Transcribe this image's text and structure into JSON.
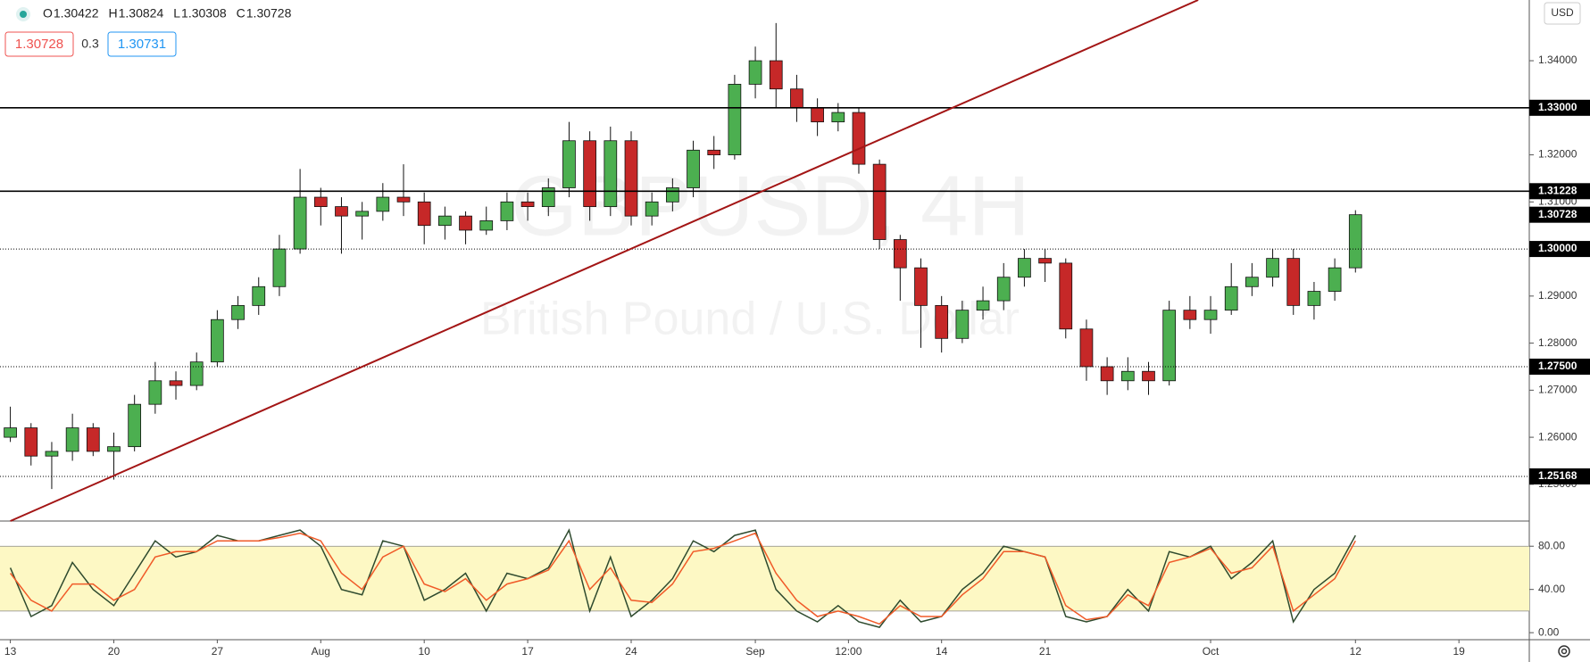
{
  "header": {
    "ohlc": [
      {
        "label": "O",
        "value": "1.30422"
      },
      {
        "label": "H",
        "value": "1.30824"
      },
      {
        "label": "L",
        "value": "1.30308"
      },
      {
        "label": "C",
        "value": "1.30728"
      }
    ],
    "sell": "1.30728",
    "spread": "0.3",
    "buy": "1.30731",
    "currency": "USD",
    "watermark": "GBPUSD, 4H",
    "watermark_sub": "British Pound / U.S. Dollar"
  },
  "chart_data": [
    {
      "type": "candlestick",
      "up_color": "#4caf50",
      "down_color": "#c62828",
      "x": [
        0,
        1,
        2,
        3,
        4,
        5,
        6,
        7,
        8,
        9,
        10,
        11,
        12,
        13,
        14,
        15,
        16,
        17,
        18,
        19,
        20,
        21,
        22,
        23,
        24,
        25,
        26,
        27,
        28,
        29,
        30,
        31,
        32,
        33,
        34,
        35,
        36,
        37,
        38,
        39,
        40,
        41,
        42,
        43,
        44,
        45,
        46,
        47,
        48,
        49,
        50,
        51,
        52,
        53,
        54,
        55,
        56,
        57,
        58,
        59,
        60,
        61,
        62,
        63,
        64,
        65
      ],
      "open": [
        1.26,
        1.262,
        1.256,
        1.257,
        1.262,
        1.257,
        1.258,
        1.267,
        1.272,
        1.271,
        1.276,
        1.285,
        1.288,
        1.292,
        1.3,
        1.311,
        1.309,
        1.307,
        1.308,
        1.311,
        1.31,
        1.305,
        1.307,
        1.304,
        1.306,
        1.31,
        1.309,
        1.313,
        1.323,
        1.309,
        1.323,
        1.307,
        1.31,
        1.313,
        1.321,
        1.32,
        1.335,
        1.34,
        1.334,
        1.33,
        1.327,
        1.329,
        1.318,
        1.302,
        1.296,
        1.288,
        1.281,
        1.287,
        1.289,
        1.294,
        1.298,
        1.297,
        1.283,
        1.275,
        1.272,
        1.274,
        1.272,
        1.287,
        1.285,
        1.287,
        1.292,
        1.294,
        1.298,
        1.288,
        1.291,
        1.296
      ],
      "high": [
        1.2665,
        1.263,
        1.259,
        1.265,
        1.263,
        1.261,
        1.269,
        1.276,
        1.274,
        1.278,
        1.287,
        1.29,
        1.294,
        1.303,
        1.317,
        1.313,
        1.311,
        1.31,
        1.314,
        1.318,
        1.312,
        1.309,
        1.308,
        1.309,
        1.312,
        1.312,
        1.315,
        1.327,
        1.325,
        1.326,
        1.325,
        1.312,
        1.315,
        1.323,
        1.324,
        1.337,
        1.343,
        1.348,
        1.337,
        1.332,
        1.331,
        1.33,
        1.319,
        1.303,
        1.298,
        1.29,
        1.289,
        1.292,
        1.297,
        1.3,
        1.3,
        1.298,
        1.285,
        1.277,
        1.277,
        1.276,
        1.289,
        1.29,
        1.29,
        1.297,
        1.297,
        1.3,
        1.3,
        1.293,
        1.298,
        1.30824
      ],
      "low": [
        1.259,
        1.254,
        1.249,
        1.255,
        1.256,
        1.251,
        1.257,
        1.265,
        1.268,
        1.27,
        1.275,
        1.283,
        1.286,
        1.29,
        1.299,
        1.305,
        1.299,
        1.302,
        1.306,
        1.307,
        1.301,
        1.302,
        1.301,
        1.303,
        1.304,
        1.306,
        1.307,
        1.311,
        1.306,
        1.307,
        1.305,
        1.305,
        1.308,
        1.311,
        1.317,
        1.319,
        1.332,
        1.33,
        1.327,
        1.324,
        1.325,
        1.316,
        1.3,
        1.289,
        1.279,
        1.278,
        1.28,
        1.285,
        1.287,
        1.292,
        1.293,
        1.281,
        1.272,
        1.269,
        1.27,
        1.269,
        1.271,
        1.283,
        1.282,
        1.286,
        1.29,
        1.292,
        1.286,
        1.285,
        1.289,
        1.295
      ],
      "close": [
        1.262,
        1.256,
        1.257,
        1.262,
        1.257,
        1.258,
        1.267,
        1.272,
        1.271,
        1.276,
        1.285,
        1.288,
        1.292,
        1.3,
        1.311,
        1.309,
        1.307,
        1.308,
        1.311,
        1.31,
        1.305,
        1.307,
        1.304,
        1.306,
        1.31,
        1.309,
        1.313,
        1.323,
        1.309,
        1.323,
        1.307,
        1.31,
        1.313,
        1.321,
        1.32,
        1.335,
        1.34,
        1.334,
        1.33,
        1.327,
        1.329,
        1.318,
        1.302,
        1.296,
        1.288,
        1.281,
        1.287,
        1.289,
        1.294,
        1.298,
        1.297,
        1.283,
        1.275,
        1.272,
        1.274,
        1.272,
        1.287,
        1.285,
        1.287,
        1.292,
        1.294,
        1.298,
        1.288,
        1.291,
        1.296,
        1.30728
      ],
      "xlim": [
        -0.5,
        73.4
      ],
      "ylim": [
        1.2422,
        1.3529
      ],
      "yticks": [
        {
          "value": 1.25,
          "label": "1.25000"
        },
        {
          "value": 1.26,
          "label": "1.26000"
        },
        {
          "value": 1.27,
          "label": "1.27000"
        },
        {
          "value": 1.28,
          "label": "1.28000"
        },
        {
          "value": 1.29,
          "label": "1.29000"
        },
        {
          "value": 1.31,
          "label": "1.31000"
        },
        {
          "value": 1.32,
          "label": "1.32000"
        },
        {
          "value": 1.34,
          "label": "1.34000"
        }
      ],
      "levels": [
        {
          "value": 1.33,
          "label": "1.33000",
          "style": "solid"
        },
        {
          "value": 1.31228,
          "label": "1.31228",
          "style": "solid"
        },
        {
          "value": 1.30728,
          "label": "1.30728",
          "style": "none"
        },
        {
          "value": 1.3,
          "label": "1.30000",
          "style": "dotted"
        },
        {
          "value": 1.275,
          "label": "1.27500",
          "style": "dotted"
        },
        {
          "value": 1.25168,
          "label": "1.25168",
          "style": "dotted"
        }
      ],
      "trendline": {
        "color": "#a31515",
        "x": [
          0,
          57.4
        ],
        "y": [
          1.2422,
          1.3529
        ]
      }
    },
    {
      "type": "line",
      "xlim": [
        -0.5,
        73.4
      ],
      "ylim": [
        -6.5,
        103.3
      ],
      "yticks": [
        {
          "value": 0,
          "label": "0.00"
        },
        {
          "value": 40,
          "label": "40.00"
        },
        {
          "value": 80,
          "label": "80.00"
        }
      ],
      "band": [
        20,
        80
      ],
      "band_color": "#fdf8c4",
      "x": [
        0,
        1,
        2,
        3,
        4,
        5,
        6,
        7,
        8,
        9,
        10,
        11,
        12,
        13,
        14,
        15,
        16,
        17,
        18,
        19,
        20,
        21,
        22,
        23,
        24,
        25,
        26,
        27,
        28,
        29,
        30,
        31,
        32,
        33,
        34,
        35,
        36,
        37,
        38,
        39,
        40,
        41,
        42,
        43,
        44,
        45,
        46,
        47,
        48,
        49,
        50,
        51,
        52,
        53,
        54,
        55,
        56,
        57,
        58,
        59,
        60,
        61,
        62,
        63,
        64,
        65
      ],
      "series": [
        {
          "color": "#2e4a2e",
          "values": [
            60,
            15,
            25,
            65,
            40,
            25,
            55,
            85,
            70,
            75,
            90,
            85,
            85,
            90,
            95,
            80,
            40,
            35,
            85,
            80,
            30,
            40,
            55,
            20,
            55,
            50,
            60,
            95,
            20,
            70,
            15,
            30,
            50,
            85,
            75,
            90,
            95,
            40,
            20,
            10,
            25,
            10,
            5,
            30,
            10,
            15,
            40,
            55,
            80,
            75,
            70,
            15,
            10,
            15,
            40,
            20,
            75,
            70,
            80,
            50,
            65,
            85,
            10,
            40,
            55,
            90
          ]
        },
        {
          "color": "#f05a28",
          "values": [
            55,
            30,
            20,
            45,
            45,
            30,
            40,
            70,
            75,
            75,
            85,
            85,
            85,
            88,
            92,
            85,
            55,
            40,
            70,
            80,
            45,
            38,
            50,
            30,
            45,
            50,
            58,
            85,
            40,
            60,
            30,
            28,
            45,
            75,
            78,
            85,
            92,
            55,
            30,
            15,
            20,
            15,
            8,
            25,
            15,
            15,
            35,
            50,
            75,
            75,
            70,
            25,
            12,
            15,
            35,
            25,
            65,
            70,
            78,
            55,
            60,
            80,
            20,
            35,
            50,
            85
          ]
        }
      ],
      "xticks": [
        {
          "value": 0,
          "label": "13"
        },
        {
          "value": 5,
          "label": "20"
        },
        {
          "value": 10,
          "label": "27"
        },
        {
          "value": 15,
          "label": "Aug"
        },
        {
          "value": 20,
          "label": "10"
        },
        {
          "value": 25,
          "label": "17"
        },
        {
          "value": 30,
          "label": "24"
        },
        {
          "value": 36,
          "label": "Sep"
        },
        {
          "value": 40.5,
          "label": "12:00"
        },
        {
          "value": 45,
          "label": "14"
        },
        {
          "value": 50,
          "label": "21"
        },
        {
          "value": 58,
          "label": "Oct"
        },
        {
          "value": 65,
          "label": "12"
        },
        {
          "value": 70,
          "label": "19"
        }
      ]
    }
  ]
}
